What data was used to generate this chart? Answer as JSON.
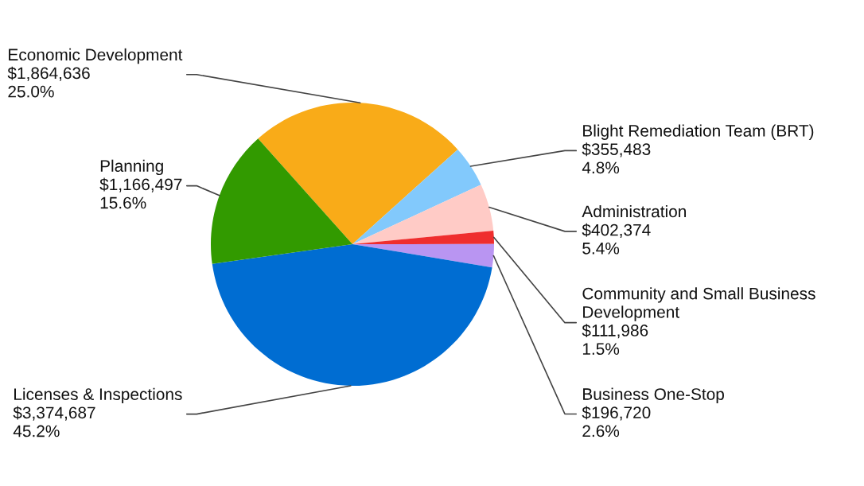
{
  "chart_data": {
    "type": "pie",
    "categories": [
      "Economic Development",
      "Blight Remediation Team (BRT)",
      "Administration",
      "Community and Small Business Development",
      "Business One-Stop",
      "Licenses & Inspections",
      "Planning"
    ],
    "values": [
      1864636,
      355483,
      402374,
      111986,
      196720,
      3374687,
      1166497
    ],
    "colors": [
      "#f9ab18",
      "#82c9fc",
      "#ffcbc6",
      "#ef2e2e",
      "#b995f2",
      "#006dd2",
      "#329a00"
    ],
    "value_labels": [
      "$1,864,636\n25.0%",
      "$355,483\n4.8%",
      "$402,374\n5.4%",
      "$111,986\n1.5%",
      "$196,720\n2.6%",
      "$3,374,687\n45.2%",
      "$1,166,497\n15.6%"
    ]
  }
}
